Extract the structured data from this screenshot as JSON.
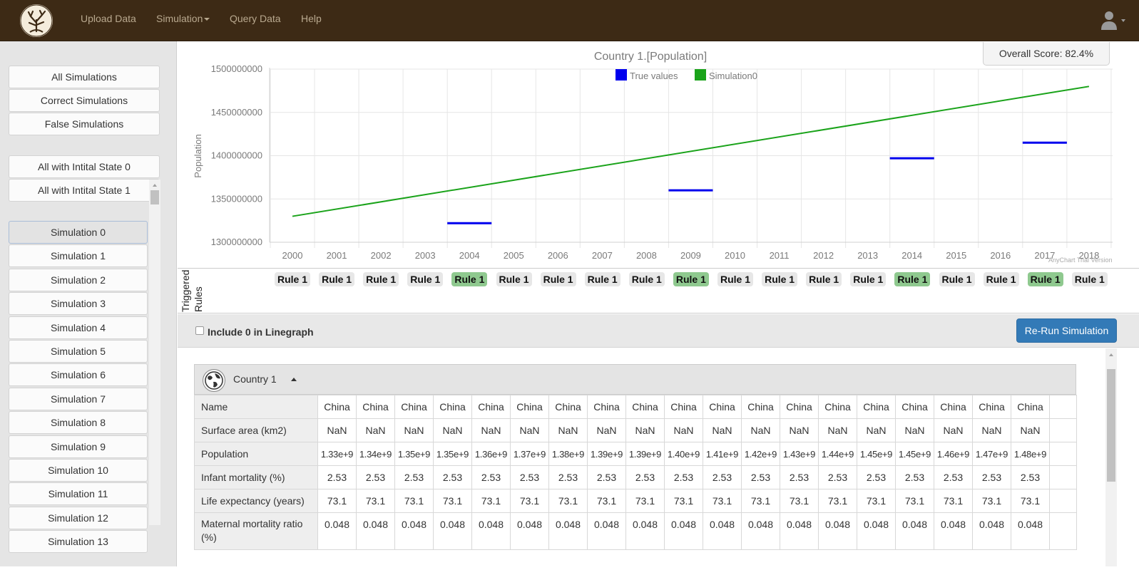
{
  "navbar": {
    "items": [
      "Upload Data",
      "Simulation",
      "Query Data",
      "Help"
    ]
  },
  "sidebar": {
    "filters": [
      "All Simulations",
      "Correct Simulations",
      "False Simulations"
    ],
    "initial_states": [
      "All with Intital State 0",
      "All with Intital State 1"
    ],
    "simulations": [
      "Simulation 0",
      "Simulation 1",
      "Simulation 2",
      "Simulation 3",
      "Simulation 4",
      "Simulation 5",
      "Simulation 6",
      "Simulation 7",
      "Simulation 8",
      "Simulation 9",
      "Simulation 10",
      "Simulation 11",
      "Simulation 12",
      "Simulation 13"
    ],
    "selected_index": 0
  },
  "score": "Overall Score: 82.4%",
  "watermark": "AnyChart Trial Version",
  "chart_data": {
    "type": "line",
    "title": "Country 1.[Population]",
    "ylabel": "Population",
    "xlabel": "",
    "x": [
      "2000",
      "2001",
      "2002",
      "2003",
      "2004",
      "2005",
      "2006",
      "2007",
      "2008",
      "2009",
      "2010",
      "2011",
      "2012",
      "2013",
      "2014",
      "2015",
      "2016",
      "2017",
      "2018"
    ],
    "ylim": [
      1300000000,
      1500000000
    ],
    "yticks": [
      "1300000000",
      "1350000000",
      "1400000000",
      "1450000000",
      "1500000000"
    ],
    "grid": true,
    "legend_position": "top",
    "series": [
      {
        "name": "True values",
        "color": "#0000ee",
        "style": "segments",
        "points": [
          [
            2004,
            1322000000
          ],
          [
            2009,
            1360000000
          ],
          [
            2014,
            1397000000
          ],
          [
            2017,
            1415000000
          ]
        ]
      },
      {
        "name": "Simulation0",
        "color": "#1aa31a",
        "style": "line",
        "points": [
          [
            2000,
            1330000000
          ],
          [
            2018,
            1480000000
          ]
        ]
      }
    ]
  },
  "rules": {
    "label": "Triggered Rules",
    "badge_text": "Rule 1",
    "highlighted_years": [
      "2004",
      "2009",
      "2014",
      "2017"
    ]
  },
  "controls": {
    "include_zero_label": "Include 0 in Linegraph",
    "include_zero_checked": false,
    "rerun_label": "Re-Run Simulation"
  },
  "table": {
    "title": "Country 1",
    "rows": [
      {
        "label": "Name",
        "values": [
          "China",
          "China",
          "China",
          "China",
          "China",
          "China",
          "China",
          "China",
          "China",
          "China",
          "China",
          "China",
          "China",
          "China",
          "China",
          "China",
          "China",
          "China",
          "China"
        ]
      },
      {
        "label": "Surface area (km2)",
        "values": [
          "NaN",
          "NaN",
          "NaN",
          "NaN",
          "NaN",
          "NaN",
          "NaN",
          "NaN",
          "NaN",
          "NaN",
          "NaN",
          "NaN",
          "NaN",
          "NaN",
          "NaN",
          "NaN",
          "NaN",
          "NaN",
          "NaN"
        ]
      },
      {
        "label": "Population",
        "values": [
          "1.33e+9",
          "1.34e+9",
          "1.35e+9",
          "1.35e+9",
          "1.36e+9",
          "1.37e+9",
          "1.38e+9",
          "1.39e+9",
          "1.39e+9",
          "1.40e+9",
          "1.41e+9",
          "1.42e+9",
          "1.43e+9",
          "1.44e+9",
          "1.45e+9",
          "1.45e+9",
          "1.46e+9",
          "1.47e+9",
          "1.48e+9"
        ]
      },
      {
        "label": "Infant mortality (%)",
        "values": [
          "2.53",
          "2.53",
          "2.53",
          "2.53",
          "2.53",
          "2.53",
          "2.53",
          "2.53",
          "2.53",
          "2.53",
          "2.53",
          "2.53",
          "2.53",
          "2.53",
          "2.53",
          "2.53",
          "2.53",
          "2.53",
          "2.53"
        ]
      },
      {
        "label": "Life expectancy (years)",
        "values": [
          "73.1",
          "73.1",
          "73.1",
          "73.1",
          "73.1",
          "73.1",
          "73.1",
          "73.1",
          "73.1",
          "73.1",
          "73.1",
          "73.1",
          "73.1",
          "73.1",
          "73.1",
          "73.1",
          "73.1",
          "73.1",
          "73.1"
        ]
      },
      {
        "label": "Maternal mortality ratio (%)",
        "values": [
          "0.048",
          "0.048",
          "0.048",
          "0.048",
          "0.048",
          "0.048",
          "0.048",
          "0.048",
          "0.048",
          "0.048",
          "0.048",
          "0.048",
          "0.048",
          "0.048",
          "0.048",
          "0.048",
          "0.048",
          "0.048",
          "0.048"
        ]
      }
    ]
  }
}
